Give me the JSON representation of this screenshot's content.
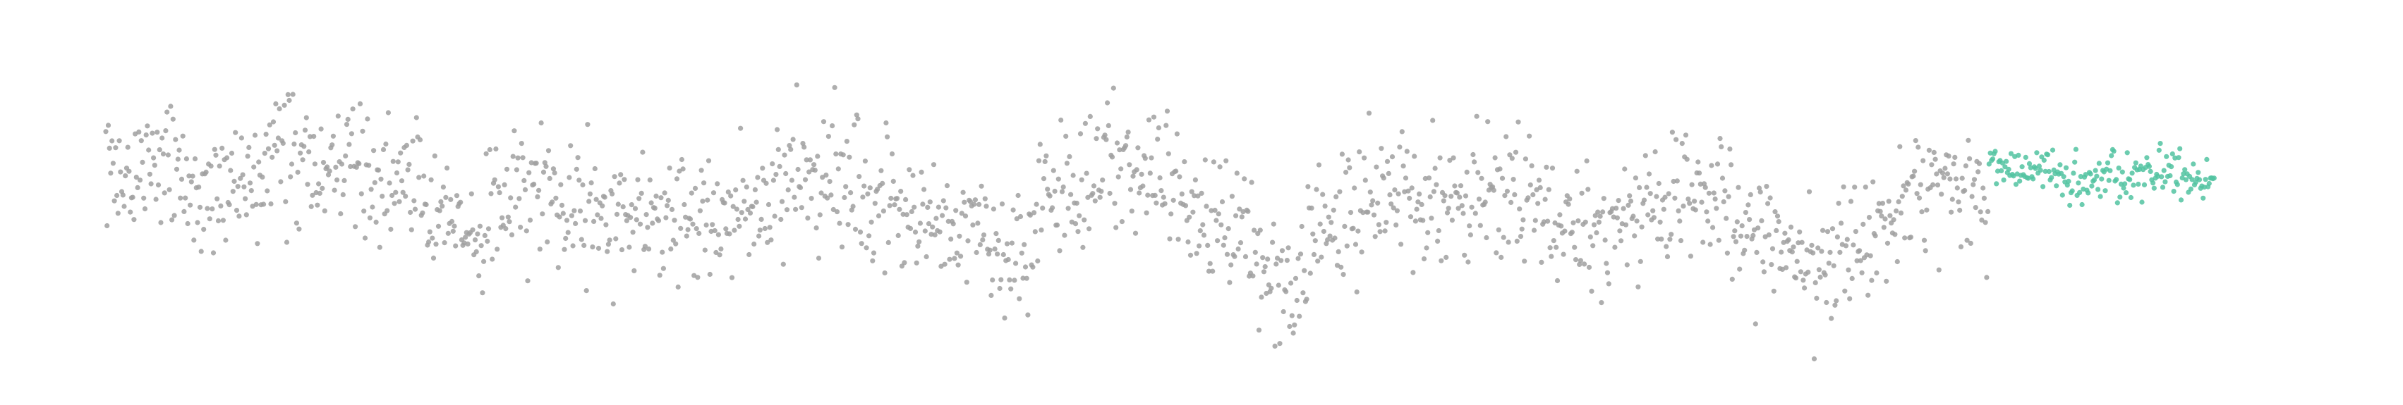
{
  "chart_data": {
    "type": "scatter",
    "title": "",
    "xlabel": "",
    "ylabel": "",
    "grid": false,
    "legend": "none",
    "axes_visible": false,
    "xlim": [
      0,
      1800
    ],
    "ylim": [
      -3.2,
      3.2
    ],
    "series": [
      {
        "key": "history",
        "color": "#a0a0a0",
        "x_range": [
          0,
          1539
        ],
        "anchors": [
          [
            0,
            0.3
          ],
          [
            60,
            0.5
          ],
          [
            100,
            0.2
          ],
          [
            140,
            0.7
          ],
          [
            180,
            0.6
          ],
          [
            220,
            0.3
          ],
          [
            260,
            0.2
          ],
          [
            300,
            -0.7
          ],
          [
            340,
            0.1
          ],
          [
            400,
            -0.2
          ],
          [
            450,
            -0.4
          ],
          [
            500,
            -0.2
          ],
          [
            550,
            0.2
          ],
          [
            600,
            0.5
          ],
          [
            660,
            -0.3
          ],
          [
            700,
            -0.5
          ],
          [
            740,
            -0.9
          ],
          [
            780,
            0.2
          ],
          [
            820,
            0.6
          ],
          [
            860,
            0.5
          ],
          [
            900,
            -0.2
          ],
          [
            940,
            -0.7
          ],
          [
            960,
            -1.6
          ],
          [
            1000,
            -0.4
          ],
          [
            1040,
            0.0
          ],
          [
            1080,
            0.1
          ],
          [
            1120,
            0.1
          ],
          [
            1160,
            0.0
          ],
          [
            1200,
            -0.2
          ],
          [
            1240,
            -0.4
          ],
          [
            1280,
            0.0
          ],
          [
            1320,
            0.2
          ],
          [
            1360,
            -0.6
          ],
          [
            1400,
            -1.0
          ],
          [
            1440,
            -0.8
          ],
          [
            1480,
            0.2
          ],
          [
            1520,
            0.4
          ],
          [
            1539,
            -0.2
          ]
        ],
        "spread": 1.05
      },
      {
        "key": "forecast",
        "color": "#52c3a1",
        "x_range": [
          1540,
          1724
        ],
        "anchors": [
          [
            1540,
            0.6
          ],
          [
            1560,
            0.5
          ],
          [
            1580,
            0.7
          ],
          [
            1600,
            0.5
          ],
          [
            1620,
            0.3
          ],
          [
            1640,
            0.5
          ],
          [
            1660,
            0.4
          ],
          [
            1680,
            0.6
          ],
          [
            1700,
            0.5
          ],
          [
            1724,
            0.5
          ]
        ],
        "spread": 0.35
      }
    ]
  }
}
